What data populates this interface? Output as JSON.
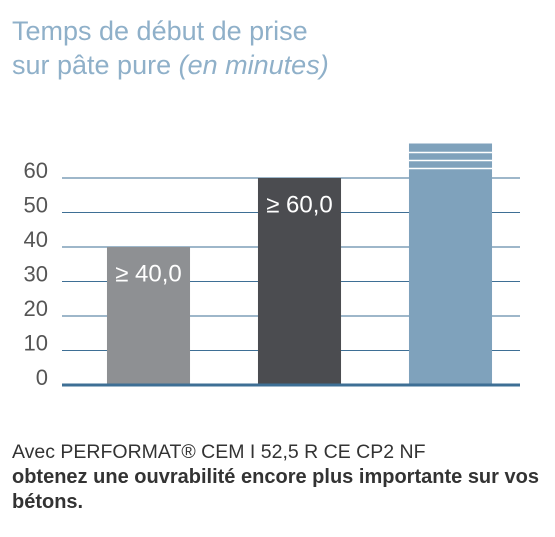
{
  "chart_data": {
    "type": "bar",
    "title": [
      "Temps de début de prise",
      "sur pâte pure"
    ],
    "title_unit": "(en minutes)",
    "categories": [
      null,
      null,
      null
    ],
    "values": [
      40,
      60,
      70
    ],
    "value_labels": [
      "≥ 40,0",
      "≥ 60,0",
      null
    ],
    "colors": [
      "#8e9093",
      "#4b4c50",
      "#7fa2bc"
    ],
    "ylim": [
      0,
      70
    ],
    "yticks": [
      0,
      10,
      20,
      30,
      40,
      50,
      60
    ],
    "grid": true,
    "footer": [
      "Avec PERFORMAT® CEM I 52,5 R CE CP2 NF",
      "obtenez une ouvrabilité encore plus importante sur vos bétons."
    ]
  }
}
